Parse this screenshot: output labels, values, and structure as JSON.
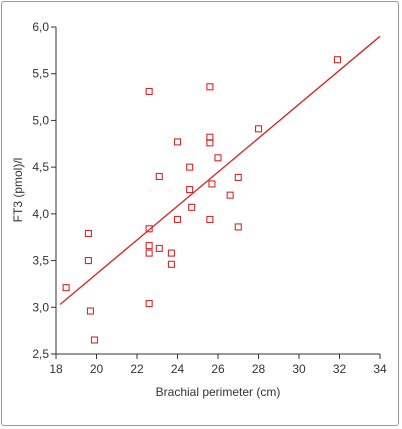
{
  "chart_data": {
    "type": "scatter",
    "xlabel": "Brachial perimeter (cm)",
    "ylabel": "FT3 (pmol)/l",
    "xlim": [
      18,
      34
    ],
    "ylim": [
      2.5,
      6.0
    ],
    "x_ticks": [
      18,
      20,
      22,
      24,
      26,
      28,
      30,
      32,
      34
    ],
    "y_ticks": [
      "2,5",
      "3,0",
      "3,5",
      "4,0",
      "4,5",
      "5,0",
      "5,5",
      "6,0"
    ],
    "y_tick_values": [
      2.5,
      3.0,
      3.5,
      4.0,
      4.5,
      5.0,
      5.5,
      6.0
    ],
    "grid": false,
    "marker_color": "#d42a2a",
    "line_color": "#d42a2a",
    "points": [
      {
        "x": 18.5,
        "y": 3.21
      },
      {
        "x": 19.6,
        "y": 3.79
      },
      {
        "x": 19.6,
        "y": 3.5
      },
      {
        "x": 19.7,
        "y": 2.96
      },
      {
        "x": 19.9,
        "y": 2.65
      },
      {
        "x": 22.6,
        "y": 5.31
      },
      {
        "x": 22.6,
        "y": 3.84
      },
      {
        "x": 22.6,
        "y": 3.66
      },
      {
        "x": 22.6,
        "y": 3.58
      },
      {
        "x": 22.6,
        "y": 3.04
      },
      {
        "x": 23.1,
        "y": 4.4
      },
      {
        "x": 23.1,
        "y": 3.63
      },
      {
        "x": 23.7,
        "y": 3.58
      },
      {
        "x": 23.7,
        "y": 3.46
      },
      {
        "x": 24.0,
        "y": 4.77
      },
      {
        "x": 24.0,
        "y": 3.94
      },
      {
        "x": 24.6,
        "y": 4.5
      },
      {
        "x": 24.6,
        "y": 4.26
      },
      {
        "x": 24.7,
        "y": 4.07
      },
      {
        "x": 25.6,
        "y": 5.36
      },
      {
        "x": 25.6,
        "y": 4.82
      },
      {
        "x": 25.6,
        "y": 4.76
      },
      {
        "x": 25.6,
        "y": 3.94
      },
      {
        "x": 25.7,
        "y": 4.32
      },
      {
        "x": 26.0,
        "y": 4.6
      },
      {
        "x": 26.6,
        "y": 4.2
      },
      {
        "x": 27.0,
        "y": 4.39
      },
      {
        "x": 27.0,
        "y": 3.86
      },
      {
        "x": 28.0,
        "y": 4.91
      },
      {
        "x": 31.9,
        "y": 5.65
      }
    ],
    "trend_line": {
      "x": [
        18.2,
        34.0
      ],
      "y": [
        3.03,
        5.9
      ]
    }
  }
}
